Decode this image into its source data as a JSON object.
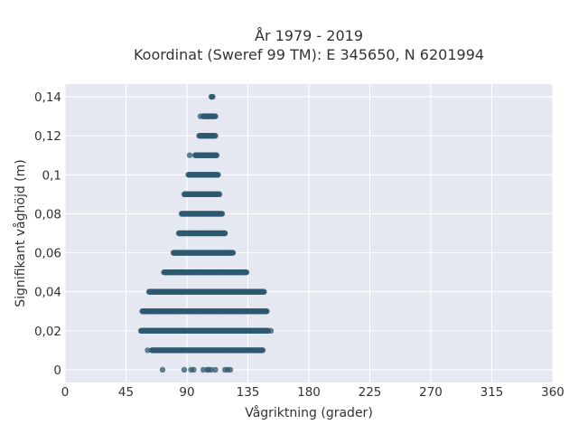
{
  "chart_data": {
    "type": "scatter",
    "title_line1": "År 1979 - 2019",
    "title_line2": "Koordinat (Sweref 99 TM): E 345650, N 6201994",
    "xlabel": "Vågriktning (grader)",
    "ylabel": "Signifikant våghöjd (m)",
    "xlim": [
      0,
      360
    ],
    "ylim": [
      -0.0065,
      0.1465
    ],
    "x_ticks": [
      0,
      45,
      90,
      135,
      180,
      225,
      270,
      315,
      360
    ],
    "x_tick_labels": [
      "0",
      "45",
      "90",
      "135",
      "180",
      "225",
      "270",
      "315",
      "360"
    ],
    "y_ticks": [
      0,
      0.02,
      0.04,
      0.06,
      0.08,
      0.1,
      0.12,
      0.14
    ],
    "y_tick_labels": [
      "0",
      "0,02",
      "0,04",
      "0,06",
      "0,08",
      "0,1",
      "0,12",
      "0,14"
    ],
    "grid": true,
    "colors": {
      "marker": "#2e5870",
      "plot_background": "#e5e8f0",
      "grid": "#ffffff"
    },
    "bands": [
      {
        "y": 0.14,
        "x_min": 108,
        "x_max": 109
      },
      {
        "y": 0.13,
        "x_min": 102,
        "x_max": 111
      },
      {
        "y": 0.12,
        "x_min": 99,
        "x_max": 111
      },
      {
        "y": 0.11,
        "x_min": 96,
        "x_max": 112
      },
      {
        "y": 0.1,
        "x_min": 91,
        "x_max": 113
      },
      {
        "y": 0.09,
        "x_min": 88,
        "x_max": 114
      },
      {
        "y": 0.08,
        "x_min": 86,
        "x_max": 116
      },
      {
        "y": 0.07,
        "x_min": 84,
        "x_max": 118
      },
      {
        "y": 0.06,
        "x_min": 80,
        "x_max": 124
      },
      {
        "y": 0.05,
        "x_min": 73,
        "x_max": 134
      },
      {
        "y": 0.04,
        "x_min": 62,
        "x_max": 147
      },
      {
        "y": 0.03,
        "x_min": 57,
        "x_max": 149
      },
      {
        "y": 0.02,
        "x_min": 56,
        "x_max": 150
      },
      {
        "y": 0.01,
        "x_min": 64,
        "x_max": 146
      }
    ],
    "sparse_points": [
      {
        "x": 92,
        "y": 0.11
      },
      {
        "x": 90,
        "y": 0.09
      },
      {
        "x": 118,
        "y": 0.07
      },
      {
        "x": 100,
        "y": 0.13
      },
      {
        "x": 152,
        "y": 0.02
      },
      {
        "x": 61,
        "y": 0.01
      },
      {
        "x": 72,
        "y": 0
      },
      {
        "x": 88,
        "y": 0
      },
      {
        "x": 93,
        "y": 0
      },
      {
        "x": 95,
        "y": 0
      },
      {
        "x": 102,
        "y": 0
      },
      {
        "x": 105,
        "y": 0
      },
      {
        "x": 106,
        "y": 0
      },
      {
        "x": 108,
        "y": 0
      },
      {
        "x": 111,
        "y": 0
      },
      {
        "x": 118,
        "y": 0
      },
      {
        "x": 120,
        "y": 0
      },
      {
        "x": 122,
        "y": 0
      }
    ]
  }
}
